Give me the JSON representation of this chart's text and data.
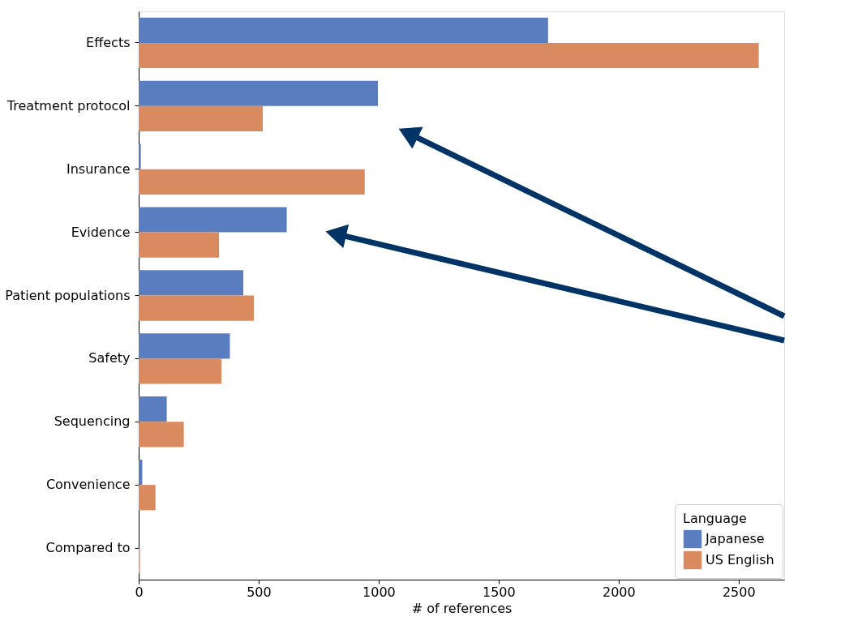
{
  "chart_data": {
    "type": "bar",
    "orientation": "horizontal",
    "xlabel": "# of references",
    "legend_title": "Language",
    "legend": "bottom right",
    "grid": false,
    "categories": [
      "Effects",
      "Treatment protocol",
      "Insurance",
      "Evidence",
      "Patient populations",
      "Safety",
      "Sequencing",
      "Convenience",
      "Compared to"
    ],
    "series": [
      {
        "name": "Japanese",
        "color": "#5a7dc0",
        "values": [
          1706,
          997,
          9,
          617,
          436,
          380,
          117,
          15,
          null
        ]
      },
      {
        "name": "US English",
        "color": "#d98a5f",
        "values": [
          2584,
          517,
          942,
          335,
          480,
          345,
          188,
          70,
          5
        ]
      }
    ],
    "xlim": [
      0,
      2690
    ],
    "xticks": [
      0,
      500,
      1000,
      1500,
      2000,
      2500
    ]
  }
}
